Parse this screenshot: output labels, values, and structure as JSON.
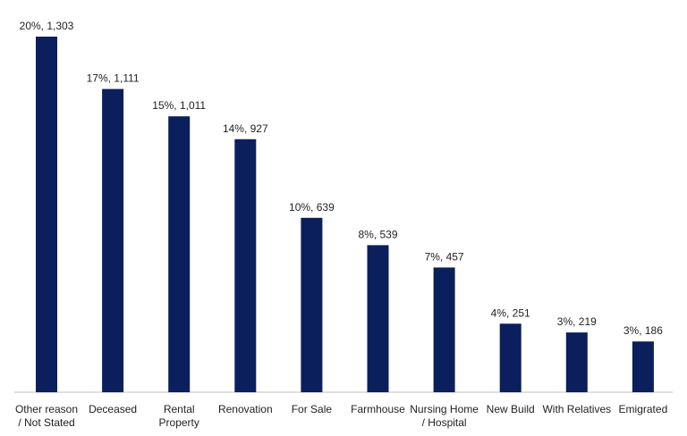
{
  "colors": {
    "bar": "#0b1f5c",
    "axis": "#bfbfbf"
  },
  "chart_data": {
    "type": "bar",
    "title": "",
    "xlabel": "",
    "ylabel": "",
    "categories": [
      [
        "Other reason",
        "/ Not Stated"
      ],
      [
        "Deceased"
      ],
      [
        "Rental",
        "Property"
      ],
      [
        "Renovation"
      ],
      [
        "For Sale"
      ],
      [
        "Farmhouse"
      ],
      [
        "Nursing Home",
        "/ Hospital"
      ],
      [
        "New Build"
      ],
      [
        "With Relatives"
      ],
      [
        "Emigrated"
      ]
    ],
    "values": [
      1303,
      1111,
      1011,
      927,
      639,
      539,
      457,
      251,
      219,
      186
    ],
    "percent_labels": [
      "20%",
      "17%",
      "15%",
      "14%",
      "10%",
      "8%",
      "7%",
      "4%",
      "3%",
      "3%"
    ],
    "value_labels": [
      "1,303",
      "1,111",
      "1,011",
      "927",
      "639",
      "539",
      "457",
      "251",
      "219",
      "186"
    ],
    "ylim": [
      0,
      1303
    ],
    "grid": false,
    "legend": "none"
  }
}
